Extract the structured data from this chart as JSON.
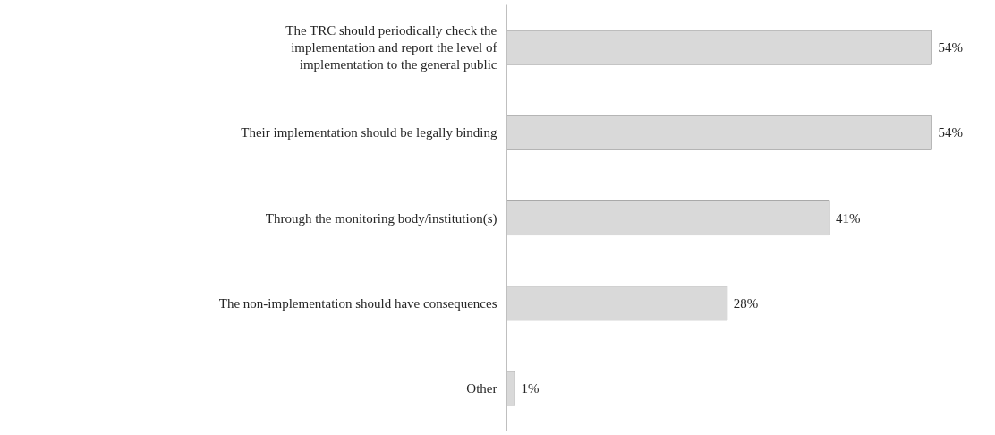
{
  "chart_data": {
    "type": "bar",
    "orientation": "horizontal",
    "categories": [
      "The TRC should periodically check the implementation and report the level of implementation to the general public",
      "Their implementation should be legally binding",
      "Through the monitoring body/institution(s)",
      "The non-implementation should have consequences",
      "Other"
    ],
    "values": [
      54,
      54,
      41,
      28,
      1
    ],
    "value_labels": [
      "54%",
      "54%",
      "41%",
      "28%",
      "1%"
    ],
    "color": "#d9d9d9",
    "grid": false
  }
}
